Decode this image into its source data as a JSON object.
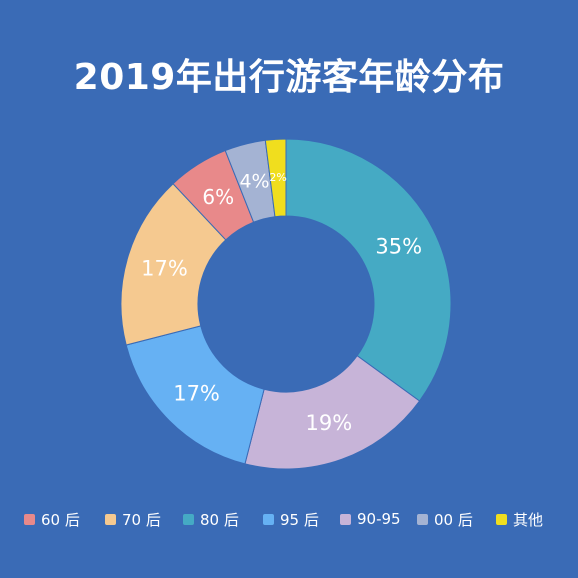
{
  "chart_data": {
    "type": "pie",
    "title": "2019年出行游客年龄分布",
    "categories": [
      "60 后",
      "70 后",
      "80 后",
      "95 后",
      "90-95",
      "00 后",
      "其他"
    ],
    "values": [
      6,
      17,
      35,
      17,
      19,
      4,
      2
    ],
    "data_labels": [
      "6%",
      "17%",
      "35%",
      "17%",
      "19%",
      "4%",
      "2%"
    ],
    "colors": [
      "#e8898a",
      "#f5c990",
      "#45aac4",
      "#66b1f3",
      "#c7b4d8",
      "#a4b3d3",
      "#f0de1e"
    ],
    "legend_position": "bottom",
    "donut": true,
    "slice_order_clockwise_from_top": [
      2,
      4,
      3,
      1,
      0,
      5,
      6
    ]
  },
  "legend": {
    "items": [
      {
        "label": "60 后",
        "color": "#e8898a"
      },
      {
        "label": "70 后",
        "color": "#f5c990"
      },
      {
        "label": "80 后",
        "color": "#45aac4"
      },
      {
        "label": "95 后",
        "color": "#66b1f3"
      },
      {
        "label": "90-95",
        "color": "#c7b4d8"
      },
      {
        "label": "00 后",
        "color": "#a4b3d3"
      },
      {
        "label": "其他",
        "color": "#f0de1e"
      }
    ]
  }
}
